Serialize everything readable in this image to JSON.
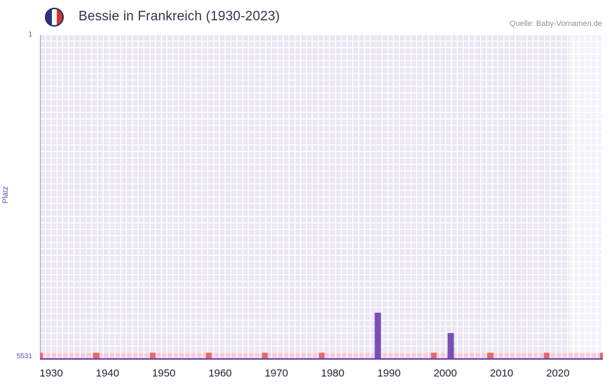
{
  "header": {
    "title": "Bessie in Frankreich (1930-2023)",
    "source": "Quelle: Baby-Vornamen.de",
    "flag_icon": "france-flag-icon"
  },
  "chart_data": {
    "type": "bar",
    "title": "Bessie in Frankreich (1930-2023)",
    "ylabel": "Platz",
    "y_axis": {
      "top_label": "1",
      "bottom_label": "5531",
      "top": 1,
      "bottom": 5531,
      "inverted": true
    },
    "xlim": [
      1928,
      2028
    ],
    "xticks": [
      1930,
      1940,
      1950,
      1960,
      1970,
      1980,
      1990,
      2000,
      2010,
      2020
    ],
    "points": [
      {
        "year": 1988,
        "rank": 4750
      },
      {
        "year": 2001,
        "rank": 5100
      }
    ],
    "highlight_band": {
      "from": 2022,
      "to": 2028
    },
    "strip_marker_years": [
      1928,
      1938,
      1948,
      1958,
      1968,
      1978,
      1988,
      1998,
      2008,
      2018,
      2028
    ],
    "grid": true,
    "legend": false,
    "colors": {
      "bar": "#7a4fb3",
      "plot_bg": "#eae6f3",
      "grid": "#ffffff",
      "strip_pink": "#f5cede",
      "strip_red": "#e66a6a",
      "axis_line": "#5b3fa8",
      "axis_text": "#6e49b8"
    }
  }
}
